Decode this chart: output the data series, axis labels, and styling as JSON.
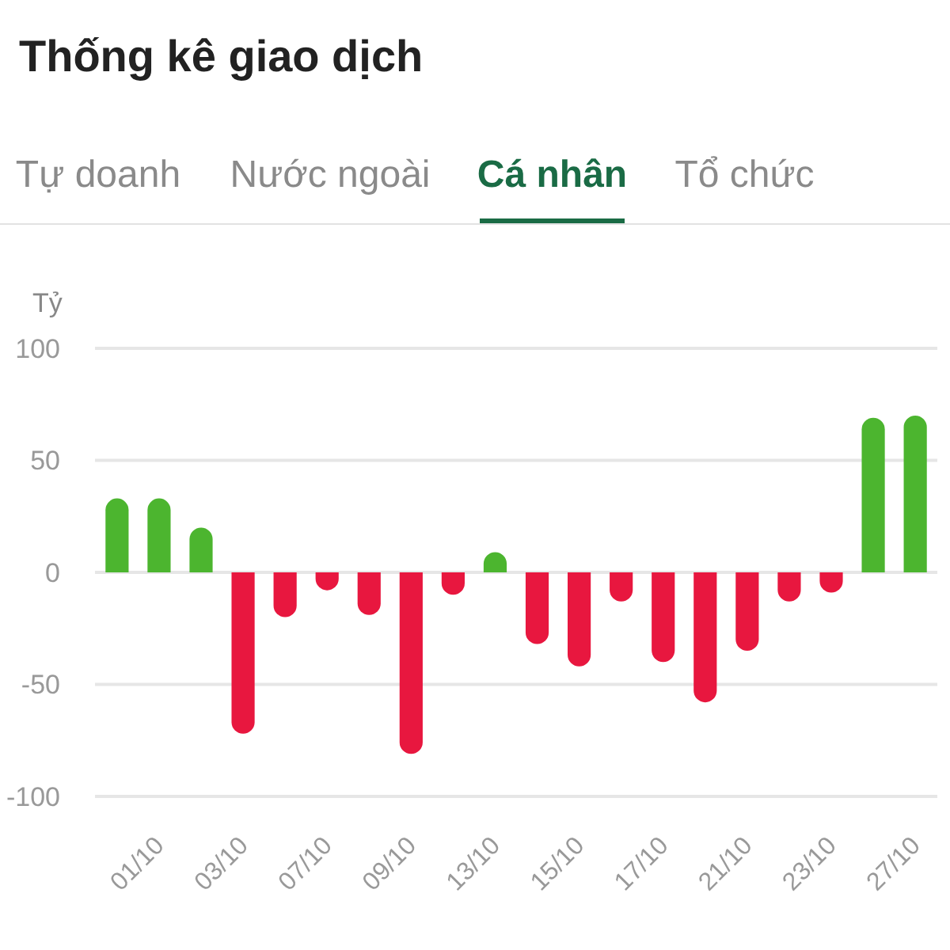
{
  "chart_data": {
    "type": "bar",
    "title": "Thống kê giao dịch",
    "ylabel": "Tỷ",
    "annotations": [
      "Tự doanh",
      "Nước ngoài",
      "Cá nhân",
      "Tổ chức"
    ],
    "categories": [
      null,
      "01/10",
      null,
      "03/10",
      null,
      "07/10",
      null,
      "09/10",
      null,
      "13/10",
      null,
      "15/10",
      null,
      "17/10",
      null,
      "21/10",
      null,
      "23/10",
      null,
      "27/10"
    ],
    "values": [
      33,
      33,
      20,
      -72,
      -20,
      -8,
      -19,
      -81,
      -10,
      9,
      -32,
      -42,
      -13,
      -40,
      -58,
      -35,
      -13,
      -9,
      69,
      70
    ],
    "colors": [
      "#4cb52f",
      "#4cb52f",
      "#4cb52f",
      "#e8173f",
      "#e8173f",
      "#e8173f",
      "#e8173f",
      "#e8173f",
      "#e8173f",
      "#4cb52f",
      "#e8173f",
      "#e8173f",
      "#e8173f",
      "#e8173f",
      "#e8173f",
      "#e8173f",
      "#e8173f",
      "#e8173f",
      "#4cb52f",
      "#4cb52f"
    ],
    "ylim": [
      -100,
      100
    ],
    "yticks": [
      -100,
      -50,
      0,
      50,
      100
    ],
    "grid": "y"
  }
}
